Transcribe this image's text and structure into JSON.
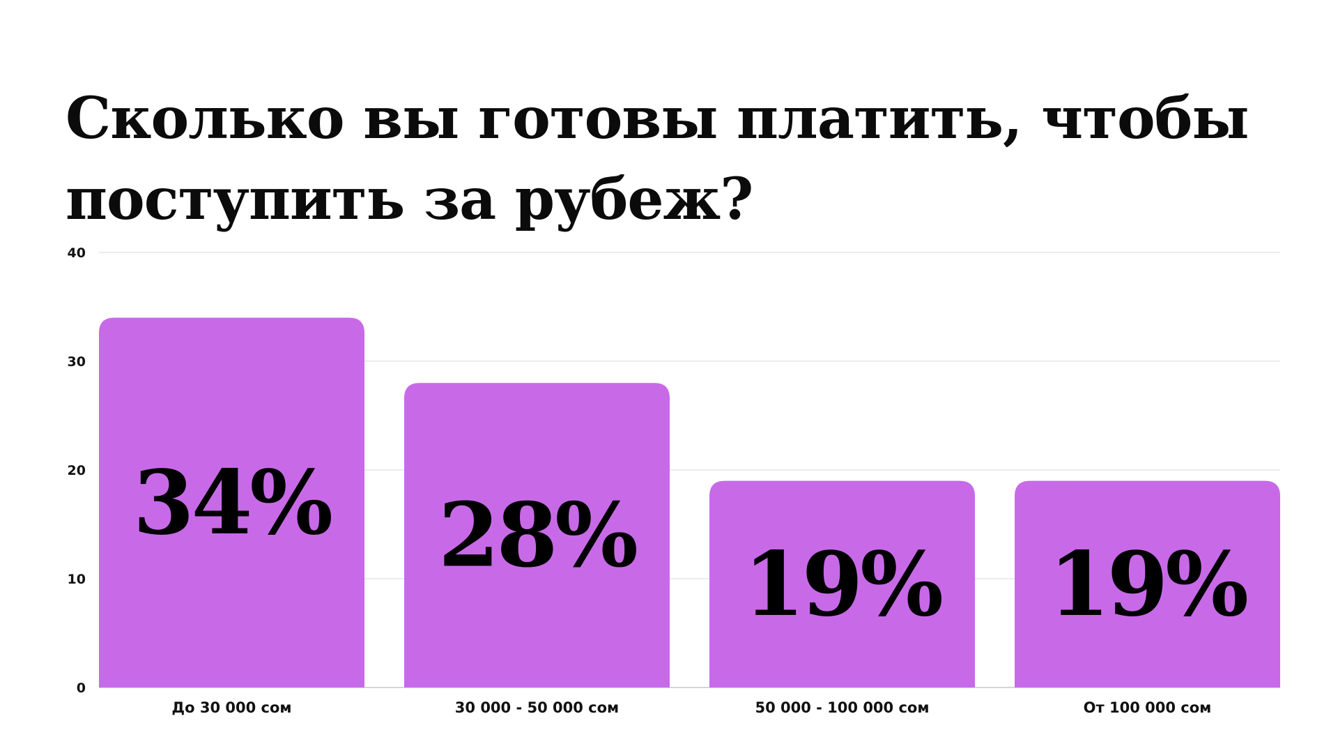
{
  "title": "Сколько вы готовы платить, чтобы поступить за рубеж?",
  "colors": {
    "bar": "#c86ae8",
    "grid": "#e6e6e6",
    "axis": "#c8c8c8",
    "text": "#111111"
  },
  "chart_data": {
    "type": "bar",
    "categories": [
      "До 30 000 сом",
      "30 000 - 50 000 сом",
      "50 000 - 100 000 сом",
      "От 100 000 сом"
    ],
    "values": [
      34,
      28,
      19,
      19
    ],
    "data_labels": [
      "34%",
      "28%",
      "19%",
      "19%"
    ],
    "yticks": [
      "0",
      "10",
      "20",
      "30",
      "40"
    ],
    "ylim": [
      0,
      40
    ],
    "grid": true,
    "legend": "none"
  }
}
